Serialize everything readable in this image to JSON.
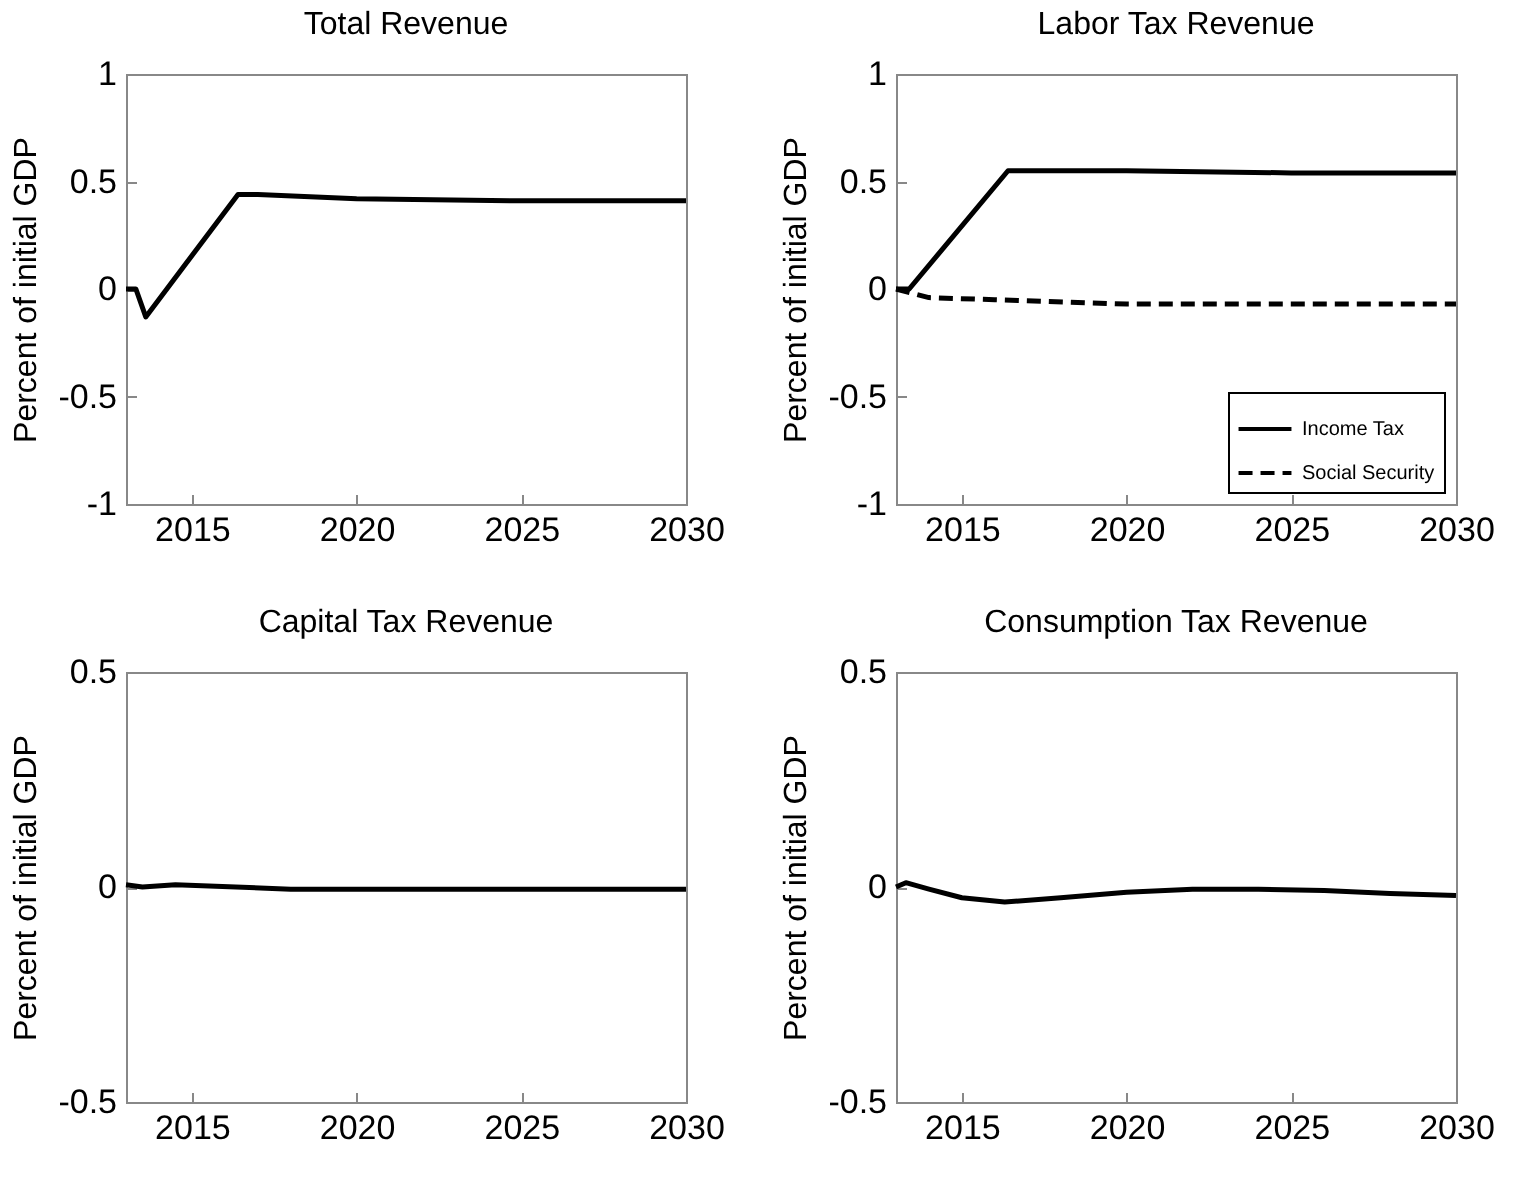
{
  "chart_data": [
    {
      "type": "line",
      "title": "Total Revenue",
      "ylabel": "Percent of initial GDP",
      "xlim": [
        2013,
        2030
      ],
      "xticks": [
        2015,
        2020,
        2025,
        2030
      ],
      "ylim": [
        -1,
        1
      ],
      "yticks": [
        -1,
        -0.5,
        0,
        0.5,
        1
      ],
      "series": [
        {
          "color": "#000000",
          "x": [
            2013,
            2013.3,
            2013.6,
            2016.4,
            2017,
            2020,
            2025,
            2030
          ],
          "values": [
            0,
            0,
            -0.13,
            0.44,
            0.44,
            0.42,
            0.41,
            0.41
          ]
        }
      ]
    },
    {
      "type": "line",
      "title": "Labor Tax Revenue",
      "ylabel": "Percent of initial GDP",
      "xlim": [
        2013,
        2030
      ],
      "xticks": [
        2015,
        2020,
        2025,
        2030
      ],
      "ylim": [
        -1,
        1
      ],
      "yticks": [
        -1,
        -0.5,
        0,
        0.5,
        1
      ],
      "legend": "bottom right",
      "series": [
        {
          "name": "Income Tax",
          "color": "#000000",
          "line_style": "solid",
          "x": [
            2013,
            2013.4,
            2016.4,
            2020,
            2025,
            2030
          ],
          "values": [
            0,
            0,
            0.55,
            0.55,
            0.54,
            0.54
          ]
        },
        {
          "name": "Social Security",
          "color": "#000000",
          "line_style": "dashed",
          "x": [
            2013,
            2013.5,
            2014,
            2016,
            2020,
            2025,
            2030
          ],
          "values": [
            0,
            -0.02,
            -0.04,
            -0.05,
            -0.07,
            -0.07,
            -0.07
          ]
        }
      ]
    },
    {
      "type": "line",
      "title": "Capital Tax Revenue",
      "ylabel": "Percent of initial GDP",
      "xlim": [
        2013,
        2030
      ],
      "xticks": [
        2015,
        2020,
        2025,
        2030
      ],
      "ylim": [
        -0.5,
        0.5
      ],
      "yticks": [
        -0.5,
        0,
        0.5
      ],
      "series": [
        {
          "color": "#000000",
          "x": [
            2013,
            2013.5,
            2014.5,
            2018,
            2024,
            2030
          ],
          "values": [
            0.005,
            0,
            0.005,
            -0.005,
            -0.005,
            -0.005
          ]
        }
      ]
    },
    {
      "type": "line",
      "title": "Consumption Tax Revenue",
      "ylabel": "Percent of initial GDP",
      "xlim": [
        2013,
        2030
      ],
      "xticks": [
        2015,
        2020,
        2025,
        2030
      ],
      "ylim": [
        -0.5,
        0.5
      ],
      "yticks": [
        -0.5,
        0,
        0.5
      ],
      "series": [
        {
          "color": "#000000",
          "x": [
            2013,
            2013.3,
            2014,
            2015,
            2016.3,
            2018,
            2020,
            2022,
            2024,
            2026,
            2028,
            2030
          ],
          "values": [
            0,
            0.01,
            -0.005,
            -0.025,
            -0.035,
            -0.025,
            -0.012,
            -0.005,
            -0.005,
            -0.008,
            -0.015,
            -0.02
          ]
        }
      ]
    }
  ]
}
